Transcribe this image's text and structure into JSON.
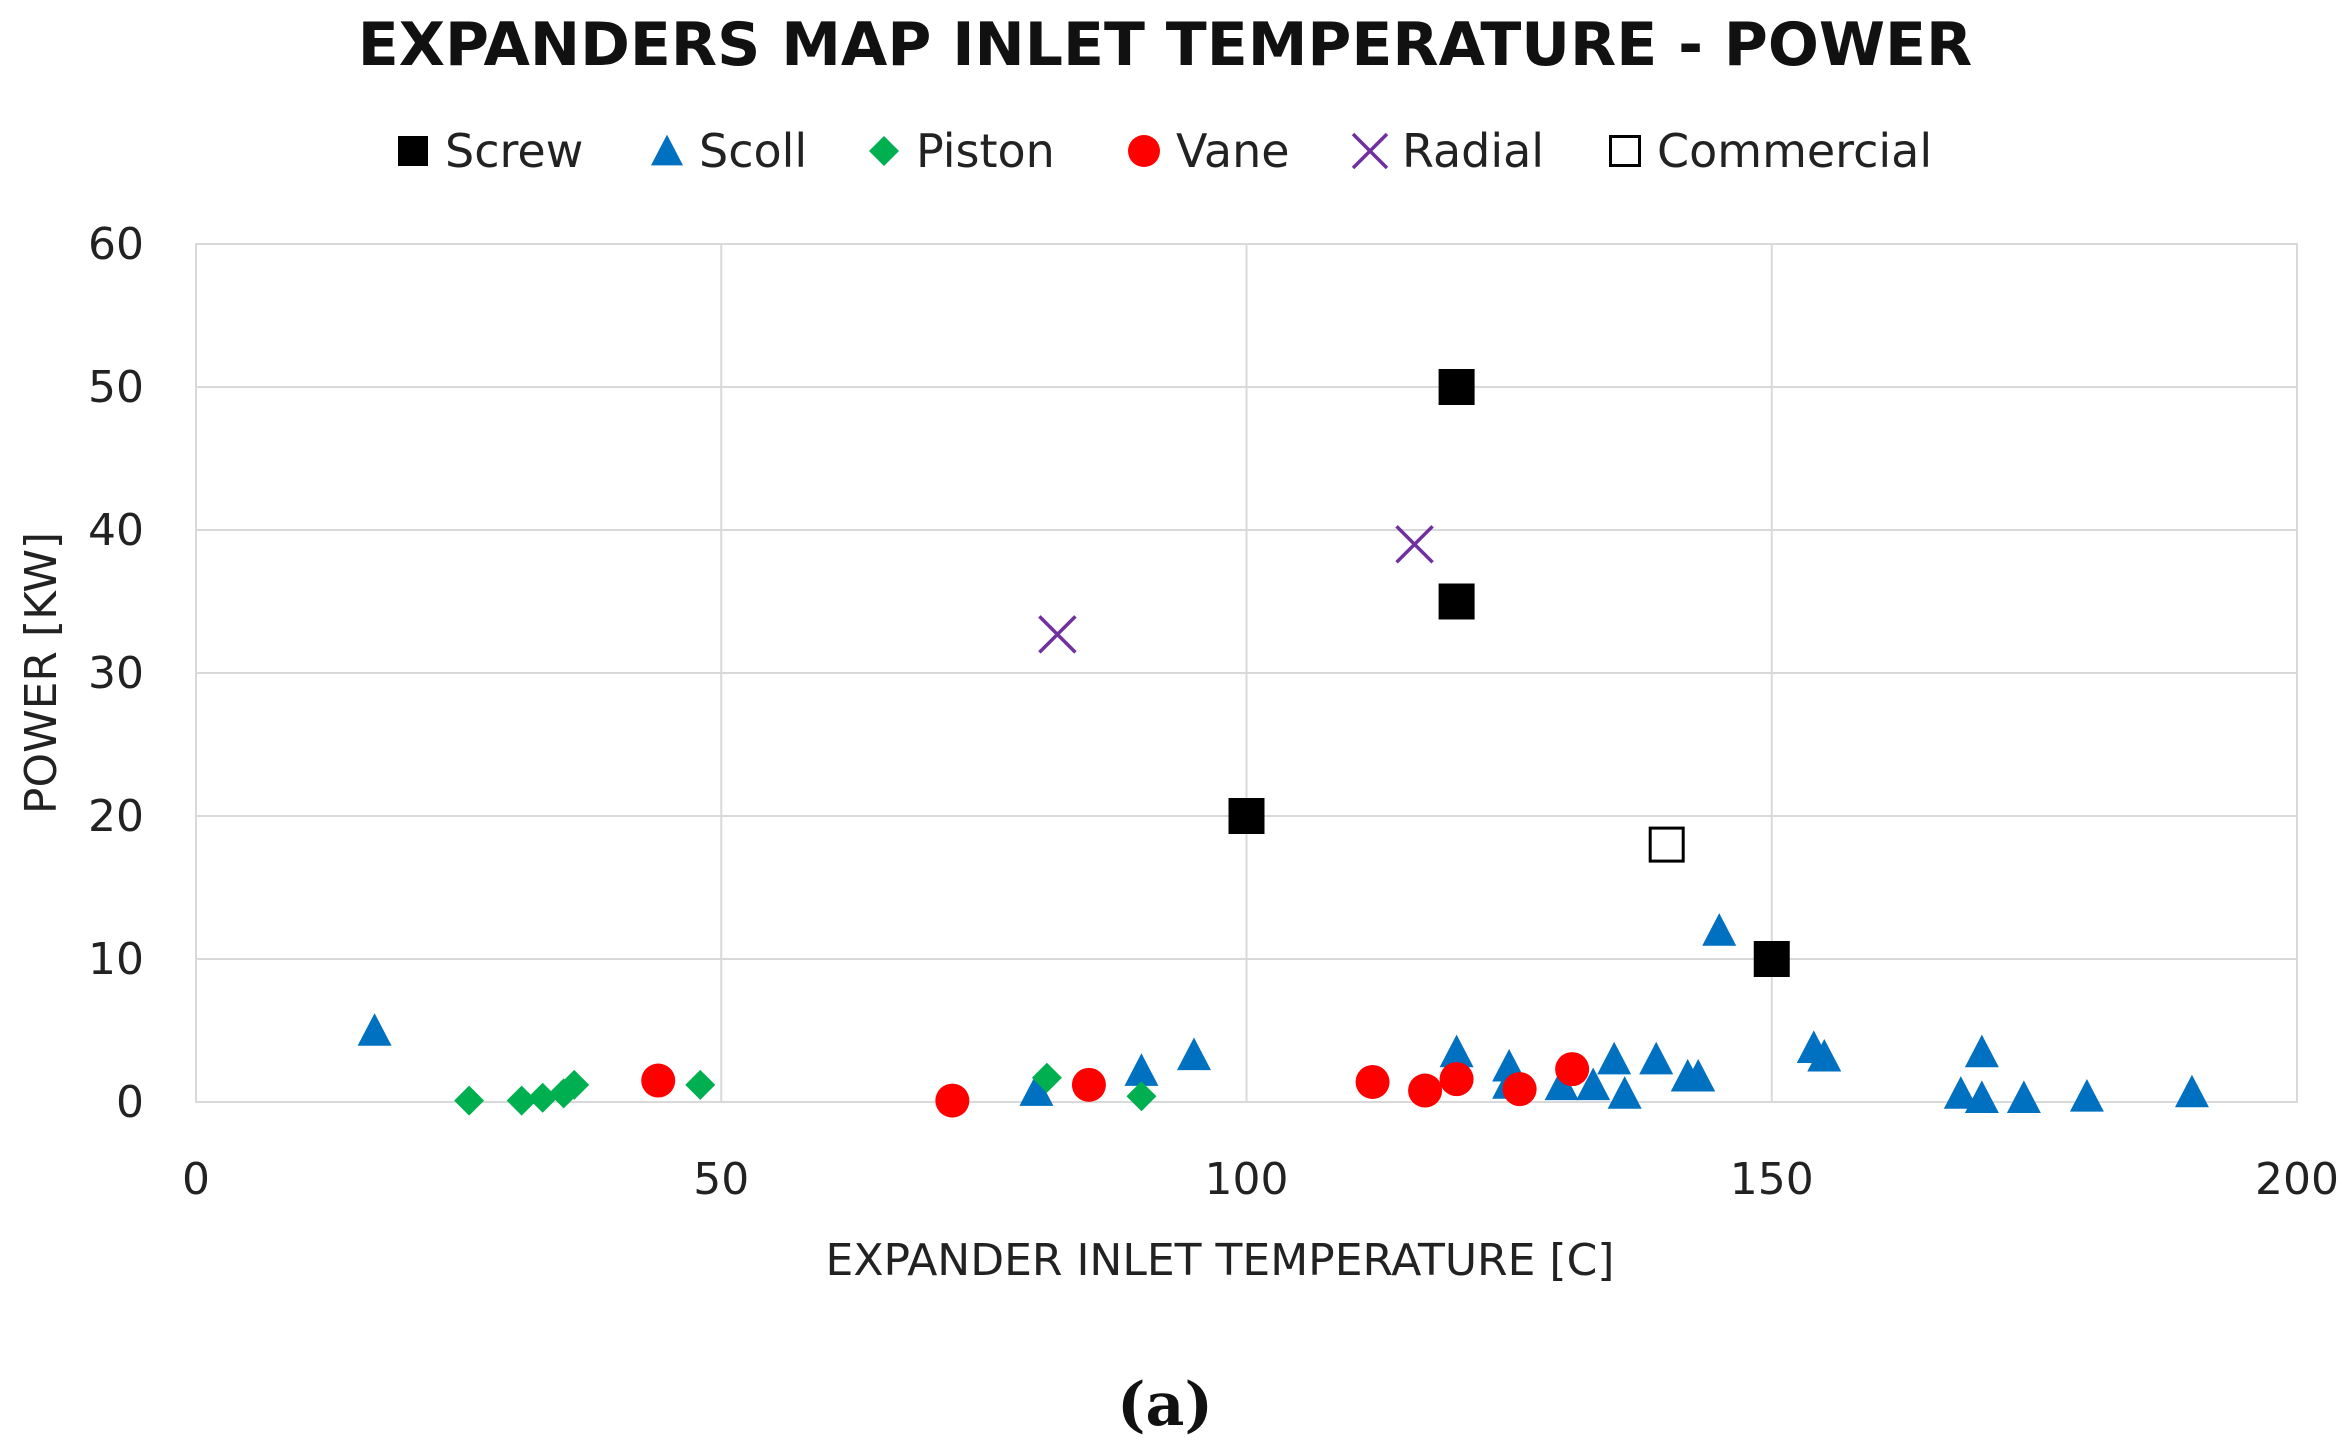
{
  "chart_data": {
    "type": "scatter",
    "title": "EXPANDERS MAP INLET TEMPERATURE - POWER",
    "xlabel": "EXPANDER INLET TEMPERATURE [C]",
    "ylabel": "POWER [KW]",
    "xlim": [
      0,
      200
    ],
    "ylim": [
      0,
      60
    ],
    "xticks": [
      0,
      50,
      100,
      150,
      200
    ],
    "yticks": [
      0,
      10,
      20,
      30,
      40,
      50,
      60
    ],
    "grid": true,
    "legend_position": "top",
    "caption": "(a)",
    "series": [
      {
        "name": "Screw",
        "marker": "square-filled",
        "color": "#000000",
        "points": [
          [
            120,
            50
          ],
          [
            120,
            35
          ],
          [
            100,
            20
          ],
          [
            150,
            10
          ]
        ]
      },
      {
        "name": "Scoll",
        "marker": "triangle-filled",
        "color": "#0070C0",
        "points": [
          [
            17,
            5
          ],
          [
            80,
            0.8
          ],
          [
            90,
            2.2
          ],
          [
            95,
            3.3
          ],
          [
            120,
            3.5
          ],
          [
            125,
            2.5
          ],
          [
            125,
            1.3
          ],
          [
            130,
            1.2
          ],
          [
            133,
            1.2
          ],
          [
            135,
            3
          ],
          [
            136,
            0.6
          ],
          [
            139,
            3
          ],
          [
            142,
            1.8
          ],
          [
            143,
            1.8
          ],
          [
            145,
            12
          ],
          [
            154,
            3.8
          ],
          [
            155,
            3.2
          ],
          [
            168,
            0.6
          ],
          [
            170,
            3.5
          ],
          [
            170,
            0.3
          ],
          [
            174,
            0.3
          ],
          [
            180,
            0.4
          ],
          [
            190,
            0.7
          ]
        ]
      },
      {
        "name": "Piston",
        "marker": "diamond-filled",
        "color": "#00B050",
        "points": [
          [
            26,
            0.1
          ],
          [
            31,
            0.1
          ],
          [
            33,
            0.3
          ],
          [
            35,
            0.6
          ],
          [
            36,
            1.2
          ],
          [
            48,
            1.2
          ],
          [
            81,
            1.7
          ],
          [
            90,
            0.4
          ]
        ]
      },
      {
        "name": "Vane",
        "marker": "circle-filled",
        "color": "#FF0000",
        "points": [
          [
            44,
            1.5
          ],
          [
            72,
            0.1
          ],
          [
            85,
            1.2
          ],
          [
            112,
            1.4
          ],
          [
            117,
            0.8
          ],
          [
            120,
            1.6
          ],
          [
            126,
            0.9
          ],
          [
            131,
            2.3
          ]
        ]
      },
      {
        "name": "Radial",
        "marker": "cross",
        "color": "#7030A0",
        "points": [
          [
            82,
            32.7
          ],
          [
            116,
            39
          ]
        ]
      },
      {
        "name": "Commercial",
        "marker": "square-open",
        "color": "#000000",
        "points": [
          [
            140,
            18
          ]
        ]
      }
    ]
  }
}
